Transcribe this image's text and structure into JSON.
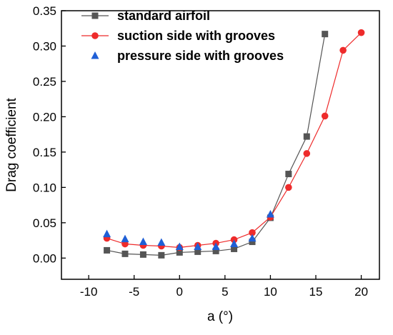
{
  "chart_data": {
    "type": "line",
    "title": "",
    "xlabel": "a (°)",
    "ylabel": "Drag coefficient",
    "xlim": [
      -13,
      22
    ],
    "ylim": [
      -0.03,
      0.35
    ],
    "xticks": [
      -10,
      -5,
      0,
      5,
      10,
      15,
      20
    ],
    "yticks": [
      0.0,
      0.05,
      0.1,
      0.15,
      0.2,
      0.25,
      0.3,
      0.35
    ],
    "xtick_labels": [
      "-10",
      "-5",
      "0",
      "5",
      "10",
      "15",
      "20"
    ],
    "ytick_labels": [
      "0.00",
      "0.05",
      "0.10",
      "0.15",
      "0.20",
      "0.25",
      "0.30",
      "0.35"
    ],
    "grid": false,
    "legend_position": "top-left",
    "series": [
      {
        "name": "standard airfoil",
        "color": "#555555",
        "marker": "square",
        "line": true,
        "x": [
          -8,
          -6,
          -4,
          -2,
          0,
          2,
          4,
          6,
          8,
          10,
          12,
          14,
          16
        ],
        "y": [
          0.011,
          0.006,
          0.005,
          0.004,
          0.008,
          0.009,
          0.01,
          0.013,
          0.023,
          0.057,
          0.119,
          0.172,
          0.317
        ]
      },
      {
        "name": "suction side with grooves",
        "color": "#ee2b2b",
        "marker": "circle",
        "line": true,
        "x": [
          -8,
          -6,
          -4,
          -2,
          0,
          2,
          4,
          6,
          8,
          10,
          12,
          14,
          16,
          18,
          20
        ],
        "y": [
          0.028,
          0.02,
          0.018,
          0.017,
          0.015,
          0.018,
          0.021,
          0.026,
          0.036,
          0.058,
          0.1,
          0.148,
          0.201,
          0.294,
          0.319
        ]
      },
      {
        "name": "pressure side with grooves",
        "color": "#1f5fd6",
        "marker": "triangle",
        "line": false,
        "x": [
          -8,
          -6,
          -4,
          -2,
          0,
          2,
          4,
          6,
          8,
          10
        ],
        "y": [
          0.034,
          0.027,
          0.023,
          0.022,
          0.016,
          0.016,
          0.016,
          0.02,
          0.028,
          0.062
        ]
      }
    ]
  }
}
